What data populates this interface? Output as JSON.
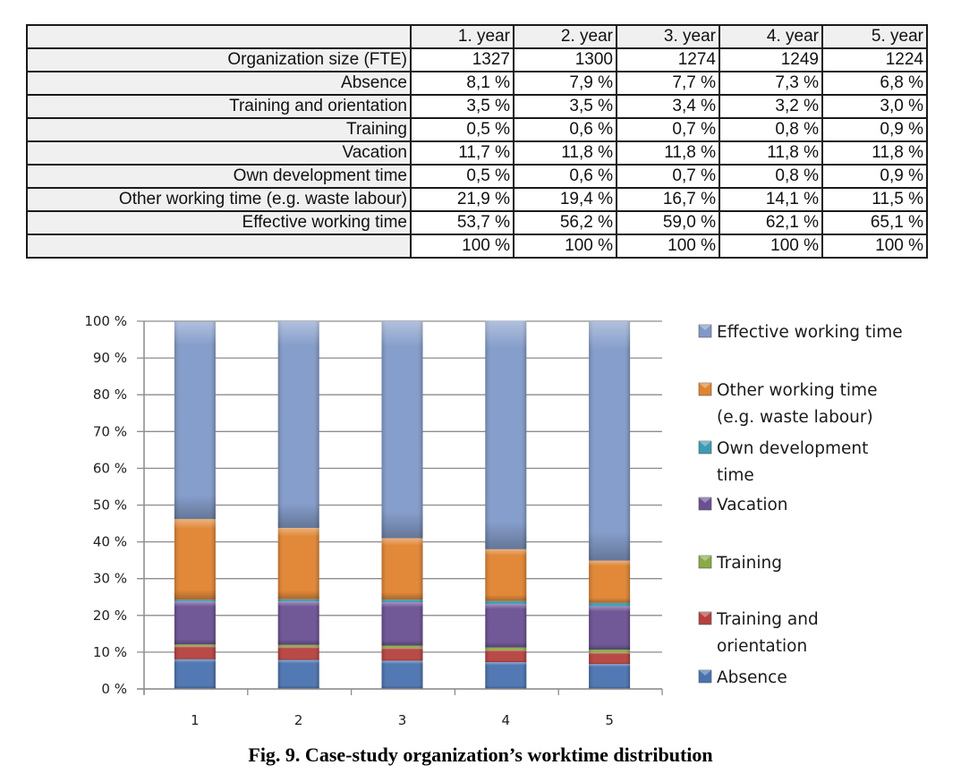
{
  "table": {
    "headers": [
      "",
      "1. year",
      "2. year",
      "3. year",
      "4. year",
      "5. year"
    ],
    "rows": [
      {
        "label": "Organization size (FTE)",
        "values": [
          "1327",
          "1300",
          "1274",
          "1249",
          "1224"
        ]
      },
      {
        "label": "Absence",
        "values": [
          "8,1 %",
          "7,9 %",
          "7,7 %",
          "7,3 %",
          "6,8 %"
        ]
      },
      {
        "label": "Training and orientation",
        "values": [
          "3,5 %",
          "3,5 %",
          "3,4 %",
          "3,2 %",
          "3,0 %"
        ]
      },
      {
        "label": "Training",
        "values": [
          "0,5 %",
          "0,6 %",
          "0,7 %",
          "0,8 %",
          "0,9 %"
        ]
      },
      {
        "label": "Vacation",
        "values": [
          "11,7 %",
          "11,8 %",
          "11,8 %",
          "11,8 %",
          "11,8 %"
        ]
      },
      {
        "label": "Own development time",
        "values": [
          "0,5 %",
          "0,6 %",
          "0,7 %",
          "0,8 %",
          "0,9 %"
        ]
      },
      {
        "label": "Other working time (e.g. waste labour)",
        "values": [
          "21,9 %",
          "19,4 %",
          "16,7 %",
          "14,1 %",
          "11,5 %"
        ]
      },
      {
        "label": "Effective working time",
        "values": [
          "53,7 %",
          "56,2 %",
          "59,0 %",
          "62,1 %",
          "65,1 %"
        ]
      },
      {
        "label": "",
        "values": [
          "100 %",
          "100 %",
          "100 %",
          "100 %",
          "100 %"
        ]
      }
    ]
  },
  "chart_data": {
    "type": "bar",
    "stacked": "percent",
    "title": "",
    "xlabel": "",
    "ylabel": "",
    "categories": [
      "1",
      "2",
      "3",
      "4",
      "5"
    ],
    "ylim": [
      0,
      100
    ],
    "yticks": [
      "0 %",
      "10 %",
      "20 %",
      "30 %",
      "40 %",
      "50 %",
      "60 %",
      "70 %",
      "80 %",
      "90 %",
      "100 %"
    ],
    "grid": true,
    "legend_position": "right",
    "series": [
      {
        "name": "Absence",
        "color": "#4a72b0",
        "values": [
          8.1,
          7.9,
          7.7,
          7.3,
          6.8
        ]
      },
      {
        "name": "Training and orientation",
        "color": "#b5403d",
        "values": [
          3.5,
          3.5,
          3.4,
          3.2,
          3.0
        ]
      },
      {
        "name": "Training",
        "color": "#8aaa46",
        "values": [
          0.5,
          0.6,
          0.7,
          0.8,
          0.9
        ]
      },
      {
        "name": "Vacation",
        "color": "#6a4f92",
        "values": [
          11.7,
          11.8,
          11.8,
          11.8,
          11.8
        ]
      },
      {
        "name": "Own development time",
        "color": "#3d9bb5",
        "values": [
          0.5,
          0.6,
          0.7,
          0.8,
          0.9
        ]
      },
      {
        "name": "Other working time (e.g. waste labour)",
        "color": "#e0832f",
        "values": [
          21.9,
          19.4,
          16.7,
          14.1,
          11.5
        ]
      },
      {
        "name": "Effective working time",
        "color": "#8099c8",
        "values": [
          53.7,
          56.2,
          59.0,
          62.1,
          65.1
        ]
      }
    ],
    "legend": [
      {
        "lines": [
          "Effective working time"
        ],
        "color": "#8099c8"
      },
      {
        "lines": [
          "Other working time",
          "(e.g. waste labour)"
        ],
        "color": "#e0832f"
      },
      {
        "lines": [
          "Own development",
          "time"
        ],
        "color": "#3d9bb5"
      },
      {
        "lines": [
          "Vacation"
        ],
        "color": "#6a4f92"
      },
      {
        "lines": [
          "Training"
        ],
        "color": "#8aaa46"
      },
      {
        "lines": [
          "Training and",
          "orientation"
        ],
        "color": "#b5403d"
      },
      {
        "lines": [
          "Absence"
        ],
        "color": "#4a72b0"
      }
    ]
  },
  "caption": "Fig. 9. Case-study organization’s worktime distribution"
}
